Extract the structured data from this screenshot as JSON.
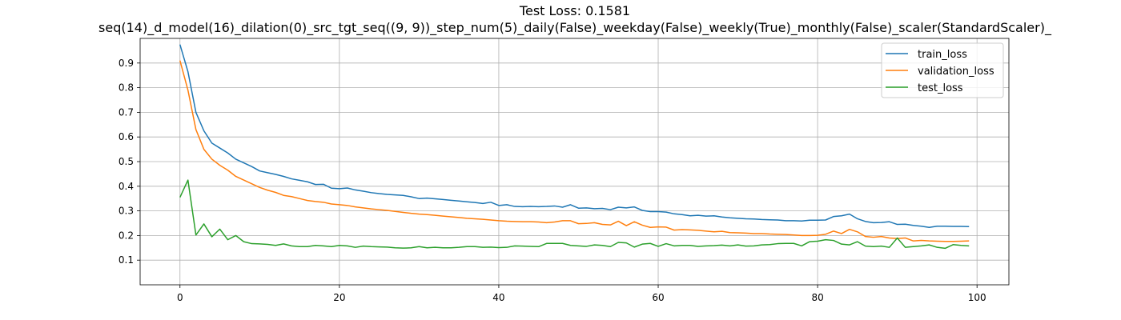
{
  "chart_data": {
    "type": "line",
    "title": "Test Loss: 0.1581",
    "subtitle": "seq(14)_d_model(16)_dilation(0)_src_tgt_seq((9, 9))_step_num(5)_daily(False)_weekday(False)_weekly(True)_monthly(False)_scaler(StandardScaler)_",
    "xlabel": "",
    "ylabel": "",
    "xlim": [
      -5,
      104
    ],
    "ylim": [
      0.0,
      1.0
    ],
    "xticks": [
      0,
      20,
      40,
      60,
      80,
      100
    ],
    "yticks": [
      0.1,
      0.2,
      0.3,
      0.4,
      0.5,
      0.6,
      0.7,
      0.8,
      0.9
    ],
    "grid": true,
    "legend_position": "top-right",
    "series": [
      {
        "name": "train_loss",
        "color": "#1f77b4",
        "values": [
          0.975,
          0.865,
          0.7,
          0.625,
          0.575,
          0.555,
          0.535,
          0.51,
          0.495,
          0.48,
          0.462,
          0.455,
          0.448,
          0.44,
          0.43,
          0.424,
          0.418,
          0.407,
          0.408,
          0.392,
          0.39,
          0.393,
          0.385,
          0.38,
          0.374,
          0.37,
          0.367,
          0.365,
          0.363,
          0.357,
          0.35,
          0.352,
          0.349,
          0.346,
          0.343,
          0.34,
          0.337,
          0.334,
          0.33,
          0.335,
          0.322,
          0.325,
          0.318,
          0.317,
          0.318,
          0.317,
          0.318,
          0.32,
          0.315,
          0.325,
          0.311,
          0.312,
          0.309,
          0.31,
          0.305,
          0.315,
          0.312,
          0.316,
          0.302,
          0.297,
          0.297,
          0.295,
          0.288,
          0.285,
          0.28,
          0.282,
          0.279,
          0.28,
          0.275,
          0.272,
          0.27,
          0.268,
          0.267,
          0.265,
          0.264,
          0.263,
          0.26,
          0.26,
          0.259,
          0.262,
          0.262,
          0.263,
          0.277,
          0.28,
          0.287,
          0.268,
          0.257,
          0.252,
          0.253,
          0.256,
          0.245,
          0.246,
          0.241,
          0.238,
          0.233,
          0.238,
          0.238,
          0.237,
          0.237,
          0.236
        ]
      },
      {
        "name": "validation_loss",
        "color": "#ff7f0e",
        "values": [
          0.91,
          0.79,
          0.63,
          0.55,
          0.51,
          0.485,
          0.465,
          0.44,
          0.425,
          0.41,
          0.395,
          0.384,
          0.375,
          0.363,
          0.358,
          0.35,
          0.342,
          0.338,
          0.335,
          0.328,
          0.325,
          0.322,
          0.316,
          0.312,
          0.308,
          0.305,
          0.302,
          0.298,
          0.294,
          0.29,
          0.287,
          0.285,
          0.282,
          0.279,
          0.276,
          0.273,
          0.27,
          0.268,
          0.266,
          0.263,
          0.26,
          0.258,
          0.257,
          0.256,
          0.256,
          0.255,
          0.252,
          0.255,
          0.26,
          0.26,
          0.248,
          0.249,
          0.252,
          0.245,
          0.243,
          0.258,
          0.24,
          0.256,
          0.242,
          0.233,
          0.235,
          0.234,
          0.222,
          0.224,
          0.223,
          0.221,
          0.218,
          0.215,
          0.217,
          0.212,
          0.211,
          0.21,
          0.208,
          0.208,
          0.206,
          0.205,
          0.204,
          0.202,
          0.2,
          0.2,
          0.201,
          0.205,
          0.218,
          0.208,
          0.225,
          0.215,
          0.196,
          0.193,
          0.196,
          0.19,
          0.188,
          0.19,
          0.178,
          0.18,
          0.178,
          0.177,
          0.176,
          0.176,
          0.177,
          0.178
        ]
      },
      {
        "name": "test_loss",
        "color": "#2ca02c",
        "values": [
          0.355,
          0.425,
          0.202,
          0.247,
          0.195,
          0.226,
          0.183,
          0.2,
          0.175,
          0.167,
          0.166,
          0.164,
          0.16,
          0.166,
          0.158,
          0.155,
          0.155,
          0.16,
          0.158,
          0.155,
          0.16,
          0.158,
          0.152,
          0.157,
          0.155,
          0.154,
          0.153,
          0.15,
          0.149,
          0.15,
          0.155,
          0.15,
          0.152,
          0.15,
          0.15,
          0.152,
          0.155,
          0.155,
          0.152,
          0.153,
          0.151,
          0.152,
          0.158,
          0.157,
          0.156,
          0.155,
          0.168,
          0.168,
          0.168,
          0.16,
          0.158,
          0.156,
          0.162,
          0.16,
          0.155,
          0.172,
          0.17,
          0.153,
          0.165,
          0.168,
          0.156,
          0.167,
          0.158,
          0.16,
          0.16,
          0.156,
          0.158,
          0.159,
          0.161,
          0.158,
          0.162,
          0.157,
          0.158,
          0.162,
          0.163,
          0.167,
          0.168,
          0.168,
          0.158,
          0.175,
          0.177,
          0.183,
          0.18,
          0.165,
          0.162,
          0.175,
          0.157,
          0.155,
          0.157,
          0.152,
          0.19,
          0.152,
          0.155,
          0.158,
          0.162,
          0.152,
          0.148,
          0.163,
          0.16,
          0.158
        ]
      }
    ]
  }
}
